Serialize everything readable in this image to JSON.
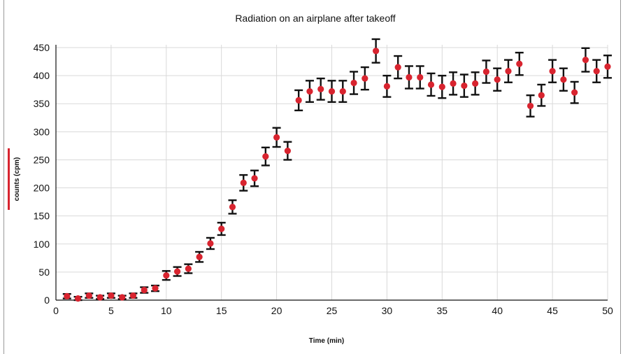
{
  "chart_data": {
    "type": "scatter",
    "title": "Radiation on an airplane after takeoff",
    "xlabel": "Time (min)",
    "ylabel": "counts  (cpm)",
    "xlim": [
      0,
      50
    ],
    "ylim": [
      0,
      450
    ],
    "x_ticks": [
      0,
      5,
      10,
      15,
      20,
      25,
      30,
      35,
      40,
      45,
      50
    ],
    "y_ticks": [
      0,
      50,
      100,
      150,
      200,
      250,
      300,
      350,
      400,
      450
    ],
    "grid": true,
    "marker_color": "#d8242f",
    "errorbar_color": "#111111",
    "series": [
      {
        "x": [
          1,
          2,
          3,
          4,
          5,
          6,
          7,
          8,
          9,
          10,
          11,
          12,
          13,
          14,
          15,
          16,
          17,
          18,
          19,
          20,
          21,
          22,
          23,
          24,
          25,
          26,
          27,
          28,
          29,
          30,
          31,
          32,
          33,
          34,
          35,
          36,
          37,
          38,
          39,
          40,
          41,
          42,
          43,
          44,
          45,
          46,
          47,
          48,
          49,
          50
        ],
        "y": [
          7,
          3,
          8,
          5,
          8,
          5,
          8,
          18,
          21,
          44,
          51,
          56,
          77,
          101,
          127,
          166,
          209,
          217,
          256,
          290,
          266,
          356,
          372,
          376,
          372,
          372,
          387,
          395,
          444,
          381,
          415,
          397,
          397,
          384,
          380,
          386,
          382,
          386,
          407,
          393,
          408,
          421,
          346,
          365,
          408,
          393,
          370,
          428,
          408,
          416
        ],
        "err": [
          4,
          3,
          4,
          3,
          4,
          3,
          4,
          5,
          5,
          8,
          8,
          8,
          9,
          10,
          11,
          12,
          14,
          14,
          16,
          17,
          16,
          18,
          19,
          19,
          19,
          19,
          20,
          20,
          21,
          19,
          20,
          20,
          20,
          20,
          20,
          20,
          20,
          20,
          20,
          20,
          20,
          20,
          19,
          19,
          20,
          20,
          19,
          21,
          20,
          20
        ]
      }
    ]
  }
}
